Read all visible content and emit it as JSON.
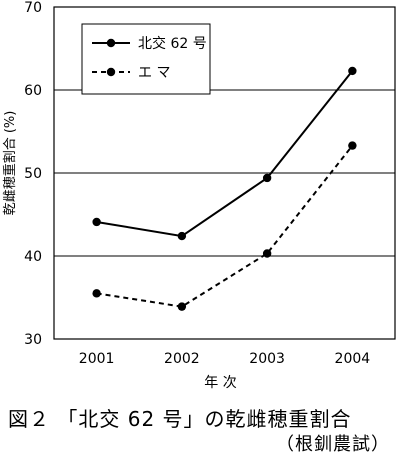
{
  "chart_data": {
    "type": "line",
    "title": "",
    "xlabel": "年 次",
    "ylabel": "乾雌穂重割合 (%)",
    "categories": [
      "2001",
      "2002",
      "2003",
      "2004"
    ],
    "ylim": [
      30,
      70
    ],
    "yticks": [
      "30",
      "40",
      "50",
      "60",
      "70"
    ],
    "grid": true,
    "legend_position": "top-left",
    "series": [
      {
        "name": "北交 62 号",
        "style": "solid",
        "color": "#000000",
        "values": [
          44.1,
          42.4,
          49.4,
          62.3
        ]
      },
      {
        "name": "エ マ",
        "style": "dashed",
        "color": "#000000",
        "values": [
          35.5,
          33.9,
          40.3,
          53.3
        ]
      }
    ]
  },
  "caption": {
    "line1": "図２ 「北交 62 号」の乾雌穂重割合",
    "line2": "（根釧農試）"
  }
}
